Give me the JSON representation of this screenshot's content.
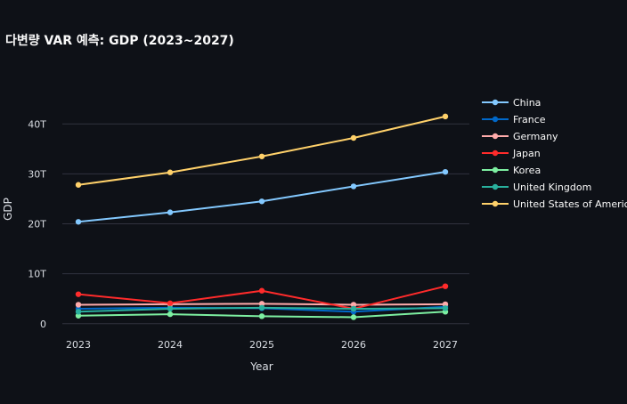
{
  "chart_data": {
    "type": "line",
    "title": "다변량 VAR 예측: GDP (2023~2027)",
    "xlabel": "Year",
    "ylabel": "GDP",
    "x": [
      "2023",
      "2024",
      "2025",
      "2026",
      "2027"
    ],
    "yticks": [
      {
        "value": 0,
        "label": "0"
      },
      {
        "value": 10,
        "label": "10T"
      },
      {
        "value": 20,
        "label": "20T"
      },
      {
        "value": 30,
        "label": "30T"
      },
      {
        "value": 40,
        "label": "40T"
      }
    ],
    "y_unit": "trillions",
    "ylim": [
      -2,
      47
    ],
    "grid": true,
    "legend_position": "right",
    "series": [
      {
        "name": "China",
        "color": "#83c9ff",
        "values": [
          20.4,
          22.3,
          24.5,
          27.5,
          30.4
        ]
      },
      {
        "name": "France",
        "color": "#0068c9",
        "values": [
          3.0,
          3.2,
          3.1,
          2.4,
          3.4
        ]
      },
      {
        "name": "Germany",
        "color": "#ffabab",
        "values": [
          3.8,
          3.9,
          4.0,
          3.8,
          3.9
        ]
      },
      {
        "name": "Japan",
        "color": "#ff2b2b",
        "values": [
          5.9,
          4.1,
          6.6,
          3.0,
          7.5
        ]
      },
      {
        "name": "Korea",
        "color": "#7defa1",
        "values": [
          1.6,
          1.9,
          1.5,
          1.3,
          2.4
        ]
      },
      {
        "name": "United Kingdom",
        "color": "#29b09d",
        "values": [
          2.4,
          3.0,
          3.2,
          3.0,
          3.1
        ]
      },
      {
        "name": "United States of America",
        "color": "#ffd16a",
        "values": [
          27.8,
          30.3,
          33.5,
          37.2,
          41.5
        ]
      }
    ]
  }
}
